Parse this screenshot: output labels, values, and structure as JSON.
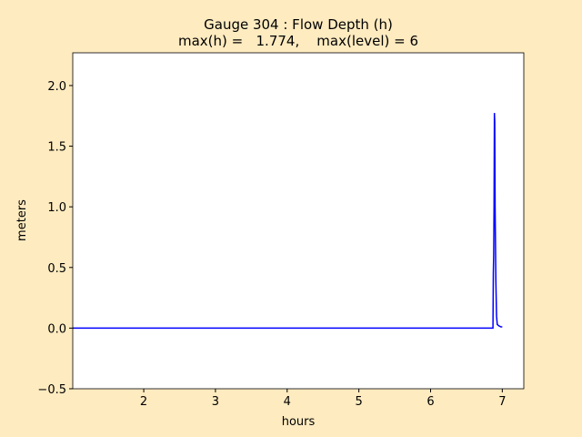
{
  "chart_data": {
    "type": "line",
    "title": "Gauge 304 : Flow Depth (h)",
    "subtitle": "max(h) =   1.774,    max(level) = 6",
    "x_label": "hours",
    "y_label": "meters",
    "series": [
      {
        "color": "#0000ff",
        "x": [
          1.01,
          2,
          3,
          4,
          5,
          6,
          6.87,
          6.875,
          6.88,
          6.885,
          6.89,
          6.895,
          6.9,
          6.91,
          6.92,
          6.93,
          6.95,
          6.98,
          7.0
        ],
        "values": [
          0,
          0,
          0,
          0,
          0,
          0,
          0,
          0.45,
          0.6,
          1.0,
          1.774,
          1.7,
          1.0,
          0.4,
          0.1,
          0.03,
          0.02,
          0.01,
          0.01
        ]
      }
    ],
    "xlim": [
      1.01,
      7.3
    ],
    "ylim": [
      -0.5,
      2.27
    ],
    "xticks": [
      2,
      3,
      4,
      5,
      6,
      7
    ],
    "yticks": [
      {
        "value": -0.5,
        "label": "−0.5"
      },
      {
        "value": 0,
        "label": "0.0"
      },
      {
        "value": 0.5,
        "label": "0.5"
      },
      {
        "value": 1,
        "label": "1.0"
      },
      {
        "value": 1.5,
        "label": "1.5"
      },
      {
        "value": 2,
        "label": "2.0"
      }
    ]
  }
}
